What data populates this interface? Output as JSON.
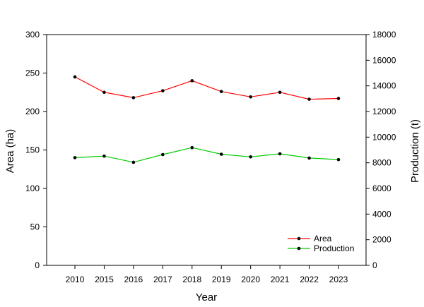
{
  "chart_data": {
    "type": "line",
    "categories": [
      "2010",
      "2015",
      "2016",
      "2017",
      "2018",
      "2019",
      "2020",
      "2021",
      "2022",
      "2023"
    ],
    "xlabel": "Year",
    "ylabel": "Area (ha)",
    "y2label": "Production (t)",
    "ylim": [
      0,
      300
    ],
    "y2lim": [
      0,
      18000
    ],
    "yticks": [
      "0",
      "50",
      "100",
      "150",
      "200",
      "250",
      "300"
    ],
    "y2ticks": [
      "0",
      "2000",
      "4000",
      "6000",
      "8000",
      "10000",
      "12000",
      "14000",
      "16000",
      "18000"
    ],
    "grid": false,
    "legend_position": "bottom-right",
    "series": [
      {
        "name": "Area",
        "axis": "left",
        "color": "#ff0000",
        "values": [
          245,
          225,
          218,
          227,
          240,
          226,
          219,
          225,
          216,
          217
        ]
      },
      {
        "name": "Production",
        "axis": "right",
        "color": "#00cc00",
        "values": [
          8400,
          8520,
          8040,
          8640,
          9180,
          8670,
          8460,
          8700,
          8370,
          8250
        ]
      }
    ]
  }
}
